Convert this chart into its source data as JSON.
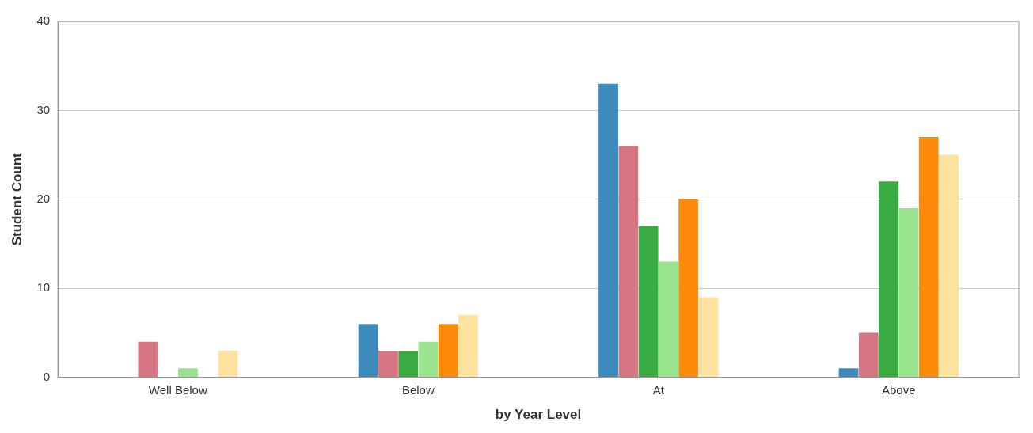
{
  "chart_data": {
    "type": "bar",
    "xlabel": "by Year Level",
    "ylabel": "Student Count",
    "categories": [
      "Well Below",
      "Below",
      "At",
      "Above"
    ],
    "series": [
      {
        "color": "#3d8bbd",
        "values": [
          0,
          6,
          33,
          1
        ]
      },
      {
        "color": "#d77583",
        "values": [
          4,
          3,
          26,
          5
        ]
      },
      {
        "color": "#38ac40",
        "values": [
          0,
          3,
          17,
          22
        ]
      },
      {
        "color": "#9ae48f",
        "values": [
          1,
          4,
          13,
          19
        ]
      },
      {
        "color": "#fd8a0a",
        "values": [
          0,
          6,
          20,
          27
        ]
      },
      {
        "color": "#fde2a0",
        "values": [
          3,
          7,
          9,
          25
        ]
      }
    ],
    "ylim": [
      0,
      40
    ],
    "yticks": [
      0,
      10,
      20,
      30,
      40
    ],
    "grid": "y",
    "legend": false
  }
}
